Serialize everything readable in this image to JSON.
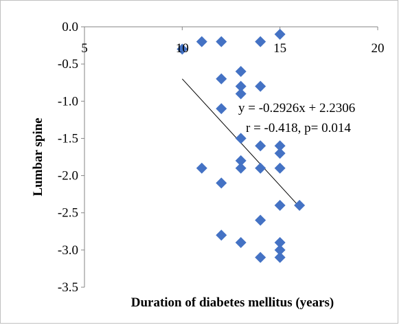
{
  "chart_data": {
    "type": "scatter",
    "title": "",
    "xlabel": "Duration of diabetes mellitus (years)",
    "ylabel": "Lumbar spine",
    "xlim": [
      5,
      20
    ],
    "ylim": [
      -3.5,
      0.0
    ],
    "x_ticks": [
      "5",
      "10",
      "15",
      "20"
    ],
    "y_ticks": [
      "0.0",
      "-0.5",
      "-1.0",
      "-1.5",
      "-2.0",
      "-2.5",
      "-3.0",
      "-3.5"
    ],
    "x_axis_position": "top",
    "grid": false,
    "legend": "none",
    "marker": "diamond",
    "marker_color": "#4472C4",
    "series": [
      {
        "points": [
          {
            "x": 10,
            "y": -0.3
          },
          {
            "x": 11,
            "y": -0.2
          },
          {
            "x": 12,
            "y": -0.2
          },
          {
            "x": 14,
            "y": -0.2
          },
          {
            "x": 15,
            "y": -0.1
          },
          {
            "x": 13,
            "y": -0.6
          },
          {
            "x": 12,
            "y": -0.7
          },
          {
            "x": 13,
            "y": -0.8
          },
          {
            "x": 14,
            "y": -0.8
          },
          {
            "x": 13,
            "y": -0.9
          },
          {
            "x": 12,
            "y": -1.1
          },
          {
            "x": 13,
            "y": -1.5
          },
          {
            "x": 14,
            "y": -1.6
          },
          {
            "x": 15,
            "y": -1.6
          },
          {
            "x": 15,
            "y": -1.7
          },
          {
            "x": 13,
            "y": -1.8
          },
          {
            "x": 11,
            "y": -1.9
          },
          {
            "x": 13,
            "y": -1.9
          },
          {
            "x": 14,
            "y": -1.9
          },
          {
            "x": 15,
            "y": -1.9
          },
          {
            "x": 12,
            "y": -2.1
          },
          {
            "x": 15,
            "y": -2.4
          },
          {
            "x": 16,
            "y": -2.4
          },
          {
            "x": 14,
            "y": -2.6
          },
          {
            "x": 12,
            "y": -2.8
          },
          {
            "x": 13,
            "y": -2.9
          },
          {
            "x": 15,
            "y": -2.9
          },
          {
            "x": 15,
            "y": -3.0
          },
          {
            "x": 14,
            "y": -3.1
          },
          {
            "x": 15,
            "y": -3.1
          }
        ]
      }
    ],
    "trendline": {
      "x_start": 10,
      "x_end": 16,
      "slope": -0.2926,
      "intercept": 2.2306,
      "color": "#000000"
    },
    "annotations": [
      "y = -0.2926x + 2.2306",
      "r = -0.418, p= 0.014"
    ]
  }
}
